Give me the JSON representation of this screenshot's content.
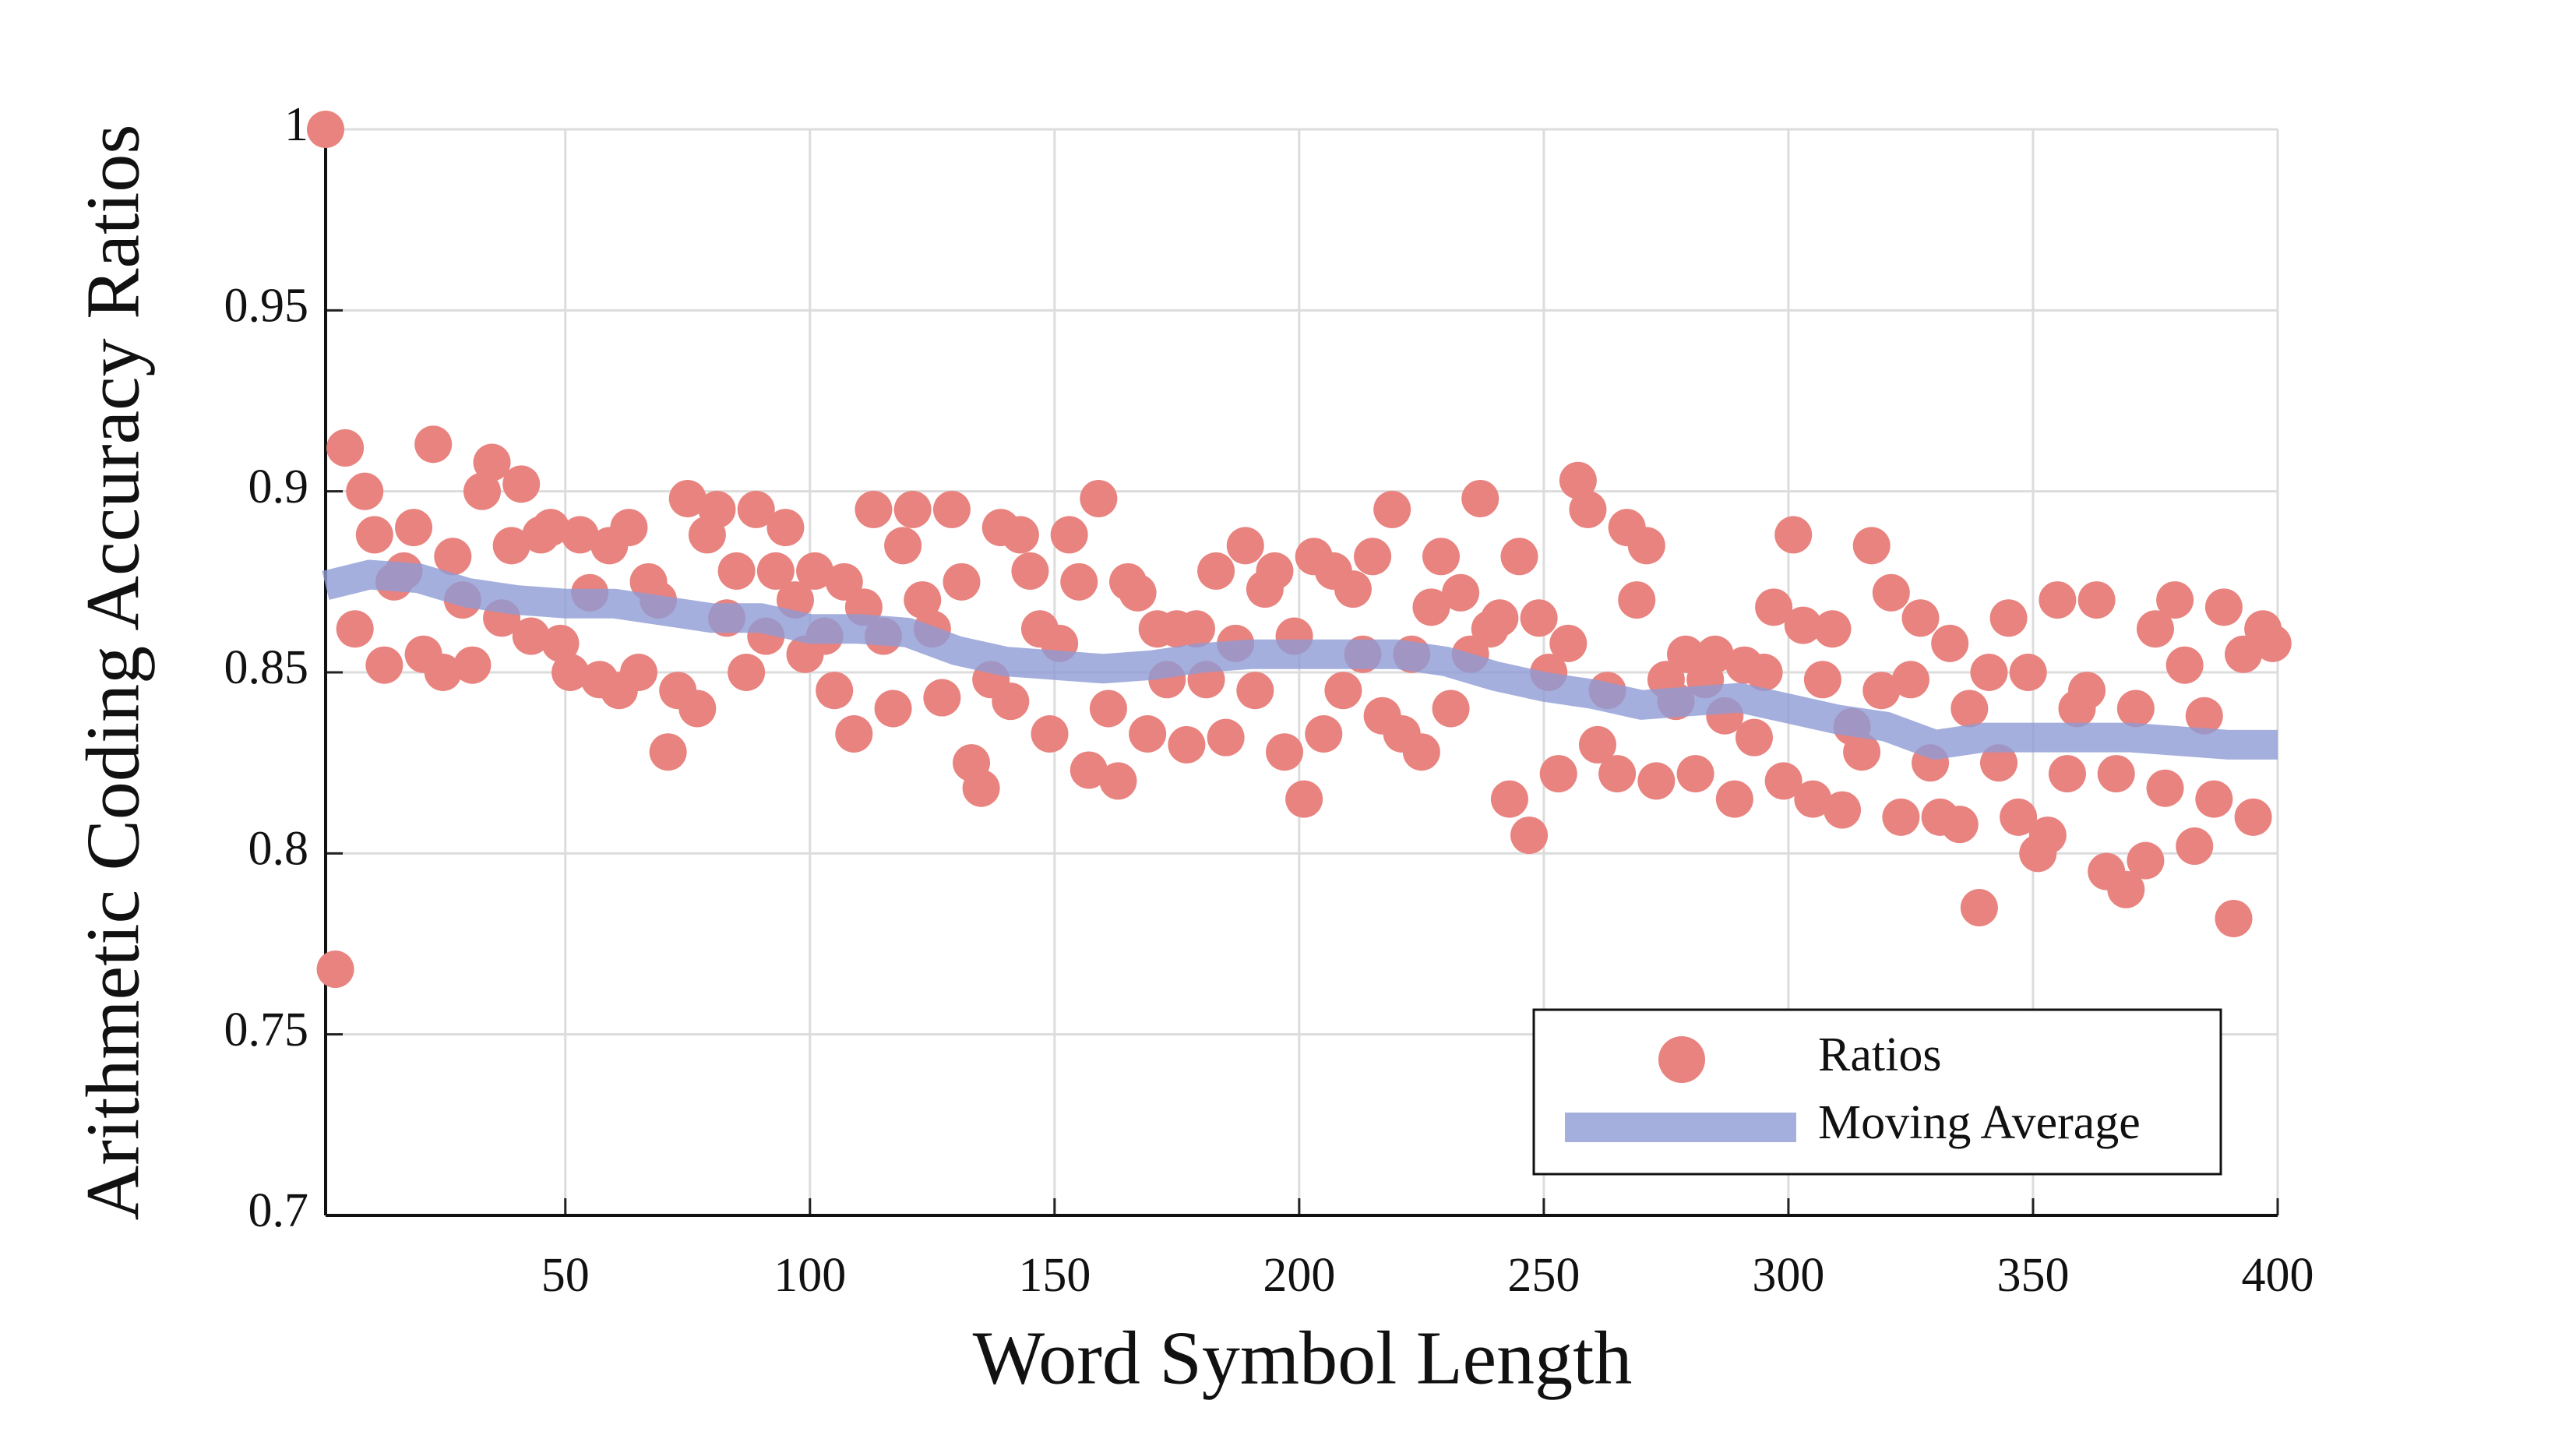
{
  "chart_data": {
    "type": "scatter",
    "xlabel": "Word Symbol Length",
    "ylabel": "Arithmetic Coding Accuracy Ratios",
    "xlim": [
      1,
      400
    ],
    "xticks": [
      50,
      100,
      150,
      200,
      250,
      300,
      350,
      400
    ],
    "ylim": [
      0.7,
      1
    ],
    "yticks": [
      0.7,
      0.75,
      0.8,
      0.85,
      0.9,
      0.95,
      1
    ],
    "grid": true,
    "legend": "lower right",
    "series": [
      {
        "name": "Ratios",
        "color": "#e8837f",
        "x": [
          1,
          3,
          5,
          7,
          9,
          11,
          13,
          15,
          17,
          19,
          21,
          23,
          25,
          27,
          29,
          31,
          33,
          35,
          37,
          39,
          41,
          43,
          45,
          47,
          49,
          51,
          53,
          55,
          57,
          59,
          61,
          63,
          65,
          67,
          69,
          71,
          73,
          75,
          77,
          79,
          81,
          83,
          85,
          87,
          89,
          91,
          93,
          95,
          97,
          99,
          101,
          103,
          105,
          107,
          109,
          111,
          113,
          115,
          117,
          119,
          121,
          123,
          125,
          127,
          129,
          131,
          133,
          135,
          137,
          139,
          141,
          143,
          145,
          147,
          149,
          151,
          153,
          155,
          157,
          159,
          161,
          163,
          165,
          167,
          169,
          171,
          173,
          175,
          177,
          179,
          181,
          183,
          185,
          187,
          189,
          191,
          193,
          195,
          197,
          199,
          201,
          203,
          205,
          207,
          209,
          211,
          213,
          215,
          217,
          219,
          221,
          223,
          225,
          227,
          229,
          231,
          233,
          235,
          237,
          239,
          241,
          243,
          245,
          247,
          249,
          251,
          253,
          255,
          257,
          259,
          261,
          263,
          265,
          267,
          269,
          271,
          273,
          275,
          277,
          279,
          281,
          283,
          285,
          287,
          289,
          291,
          293,
          295,
          297,
          299,
          301,
          303,
          305,
          307,
          309,
          311,
          313,
          315,
          317,
          319,
          321,
          323,
          325,
          327,
          329,
          331,
          333,
          335,
          337,
          339,
          341,
          343,
          345,
          347,
          349,
          351,
          353,
          355,
          357,
          359,
          361,
          363,
          365,
          367,
          369,
          371,
          373,
          375,
          377,
          379,
          381,
          383,
          385,
          387,
          389,
          391,
          393,
          395,
          397,
          399
        ],
        "values": [
          1,
          0.768,
          0.912,
          0.862,
          0.9,
          0.888,
          0.852,
          0.875,
          0.878,
          0.89,
          0.855,
          0.913,
          0.85,
          0.882,
          0.87,
          0.852,
          0.9,
          0.908,
          0.865,
          0.885,
          0.902,
          0.86,
          0.888,
          0.89,
          0.858,
          0.85,
          0.888,
          0.872,
          0.848,
          0.885,
          0.845,
          0.89,
          0.85,
          0.875,
          0.87,
          0.828,
          0.845,
          0.898,
          0.84,
          0.888,
          0.895,
          0.865,
          0.878,
          0.85,
          0.895,
          0.86,
          0.878,
          0.89,
          0.87,
          0.855,
          0.878,
          0.86,
          0.845,
          0.875,
          0.833,
          0.868,
          0.895,
          0.86,
          0.84,
          0.885,
          0.895,
          0.87,
          0.862,
          0.843,
          0.895,
          0.875,
          0.825,
          0.818,
          0.848,
          0.89,
          0.842,
          0.888,
          0.878,
          0.862,
          0.833,
          0.858,
          0.888,
          0.875,
          0.823,
          0.898,
          0.84,
          0.82,
          0.875,
          0.872,
          0.833,
          0.862,
          0.848,
          0.862,
          0.83,
          0.862,
          0.848,
          0.878,
          0.832,
          0.858,
          0.885,
          0.845,
          0.873,
          0.878,
          0.828,
          0.86,
          0.815,
          0.882,
          0.833,
          0.878,
          0.845,
          0.873,
          0.855,
          0.882,
          0.838,
          0.895,
          0.833,
          0.855,
          0.828,
          0.868,
          0.882,
          0.84,
          0.872,
          0.855,
          0.898,
          0.862,
          0.865,
          0.815,
          0.882,
          0.805,
          0.865,
          0.85,
          0.822,
          0.858,
          0.903,
          0.895,
          0.83,
          0.845,
          0.822,
          0.89,
          0.87,
          0.885,
          0.82,
          0.848,
          0.842,
          0.855,
          0.822,
          0.848,
          0.855,
          0.838,
          0.815,
          0.852,
          0.832,
          0.85,
          0.868,
          0.82,
          0.888,
          0.863,
          0.815,
          0.848,
          0.862,
          0.812,
          0.835,
          0.828,
          0.885,
          0.845,
          0.872,
          0.81,
          0.848,
          0.865,
          0.825,
          0.81,
          0.858,
          0.808,
          0.84,
          0.785,
          0.85,
          0.825,
          0.865,
          0.81,
          0.85,
          0.8,
          0.805,
          0.87,
          0.822,
          0.84,
          0.845,
          0.87,
          0.795,
          0.822,
          0.79,
          0.84,
          0.798,
          0.862,
          0.818,
          0.87,
          0.852,
          0.802,
          0.838,
          0.815,
          0.868,
          0.782,
          0.855,
          0.81,
          0.862,
          0.858
        ]
      },
      {
        "name": "Moving Average",
        "color": "#8f9bd4",
        "x": [
          1,
          10,
          20,
          30,
          40,
          50,
          60,
          70,
          80,
          90,
          100,
          110,
          120,
          130,
          140,
          150,
          160,
          170,
          180,
          190,
          200,
          210,
          220,
          230,
          240,
          250,
          260,
          270,
          280,
          290,
          300,
          310,
          320,
          330,
          340,
          350,
          360,
          370,
          380,
          390,
          400
        ],
        "values": [
          0.874,
          0.877,
          0.876,
          0.872,
          0.87,
          0.869,
          0.869,
          0.867,
          0.865,
          0.865,
          0.862,
          0.862,
          0.861,
          0.856,
          0.853,
          0.852,
          0.851,
          0.852,
          0.854,
          0.855,
          0.855,
          0.855,
          0.855,
          0.853,
          0.849,
          0.846,
          0.844,
          0.841,
          0.842,
          0.843,
          0.84,
          0.837,
          0.835,
          0.83,
          0.832,
          0.832,
          0.832,
          0.832,
          0.831,
          0.83,
          0.83
        ]
      }
    ]
  }
}
